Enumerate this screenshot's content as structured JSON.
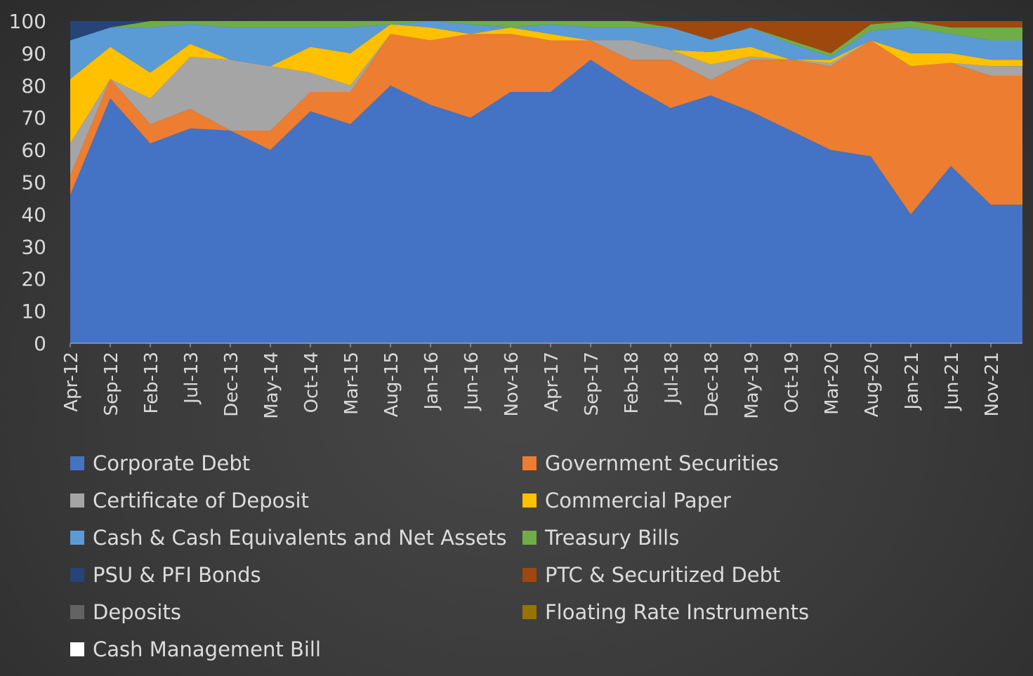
{
  "chart_data": {
    "type": "area",
    "stacked": true,
    "percent_stacked": true,
    "ylim": [
      0,
      100
    ],
    "yticks": [
      0,
      10,
      20,
      30,
      40,
      50,
      60,
      70,
      80,
      90,
      100
    ],
    "grid": false,
    "legend_position": "bottom",
    "categories": [
      "Apr-12",
      "Sep-12",
      "Feb-13",
      "Jul-13",
      "Dec-13",
      "May-14",
      "Oct-14",
      "Mar-15",
      "Aug-15",
      "Jan-16",
      "Jun-16",
      "Nov-16",
      "Apr-17",
      "Sep-17",
      "Feb-18",
      "Jul-18",
      "Dec-18",
      "May-19",
      "Oct-19",
      "Mar-20",
      "Aug-20",
      "Jan-21",
      "Jun-21",
      "Nov-21"
    ],
    "series": [
      {
        "name": "Corporate Debt",
        "color": "#4472c4",
        "values": [
          46,
          76,
          62,
          66,
          66,
          60,
          72,
          68,
          80,
          74,
          70,
          78,
          78,
          88,
          80,
          73,
          80,
          72,
          66,
          60,
          58,
          40,
          55,
          43
        ]
      },
      {
        "name": "Government Securities",
        "color": "#ed7d31",
        "values": [
          6,
          6,
          6,
          6,
          0,
          6,
          6,
          10,
          16,
          20,
          26,
          18,
          16,
          6,
          8,
          15,
          5,
          16,
          22,
          26,
          36,
          46,
          32,
          40
        ]
      },
      {
        "name": "Certificate of Deposit",
        "color": "#a5a5a5",
        "values": [
          10,
          0,
          8,
          16,
          22,
          20,
          6,
          2,
          0,
          0,
          0,
          0,
          0,
          0,
          6,
          3,
          5,
          1,
          0,
          1,
          0,
          0,
          0,
          3
        ]
      },
      {
        "name": "Commercial Paper",
        "color": "#ffc000",
        "values": [
          20,
          10,
          8,
          4,
          0,
          0,
          8,
          10,
          3,
          4,
          0,
          2,
          2,
          0,
          0,
          0,
          4,
          3,
          0,
          1,
          0,
          4,
          3,
          2
        ]
      },
      {
        "name": "Cash & Cash Equivalents and Net Assets",
        "color": "#5b9bd5",
        "values": [
          12,
          6,
          14,
          6,
          10,
          12,
          6,
          8,
          0,
          2,
          3,
          0,
          3,
          4,
          4,
          7,
          4,
          6,
          5,
          1,
          3,
          8,
          6,
          6
        ]
      },
      {
        "name": "Treasury Bills",
        "color": "#70ad47",
        "values": [
          0,
          0,
          2,
          1,
          2,
          2,
          2,
          2,
          1,
          0,
          1,
          2,
          1,
          2,
          2,
          0,
          0,
          0,
          1,
          1,
          2,
          2,
          2,
          4
        ]
      },
      {
        "name": "PSU & PFI Bonds",
        "color": "#264478",
        "values": [
          6,
          2,
          0,
          0,
          0,
          0,
          0,
          0,
          0,
          0,
          0,
          0,
          0,
          0,
          0,
          0,
          0,
          0,
          0,
          0,
          0,
          0,
          0,
          0
        ]
      },
      {
        "name": "PTC & Securitized Debt",
        "color": "#9e480e",
        "values": [
          0,
          0,
          0,
          0,
          0,
          0,
          0,
          0,
          0,
          0,
          0,
          0,
          0,
          0,
          0,
          2,
          6,
          2,
          6,
          10,
          1,
          0,
          2,
          2
        ]
      },
      {
        "name": "Deposits",
        "color": "#636363",
        "values": [
          0,
          0,
          0,
          0,
          0,
          0,
          0,
          0,
          0,
          0,
          0,
          0,
          0,
          0,
          0,
          0,
          0,
          0,
          0,
          0,
          0,
          0,
          0,
          0
        ]
      },
      {
        "name": "Floating Rate Instruments",
        "color": "#997300",
        "values": [
          0,
          0,
          0,
          0,
          0,
          0,
          0,
          0,
          0,
          0,
          0,
          0,
          0,
          0,
          0,
          0,
          0,
          0,
          0,
          0,
          0,
          0,
          0,
          0
        ]
      },
      {
        "name": "Cash Management Bill",
        "color": "#ffffff",
        "values": [
          0,
          0,
          0,
          0,
          0,
          0,
          0,
          0,
          0,
          0,
          0,
          0,
          0,
          0,
          0,
          0,
          0,
          0,
          0,
          0,
          0,
          0,
          0,
          0
        ]
      }
    ]
  }
}
